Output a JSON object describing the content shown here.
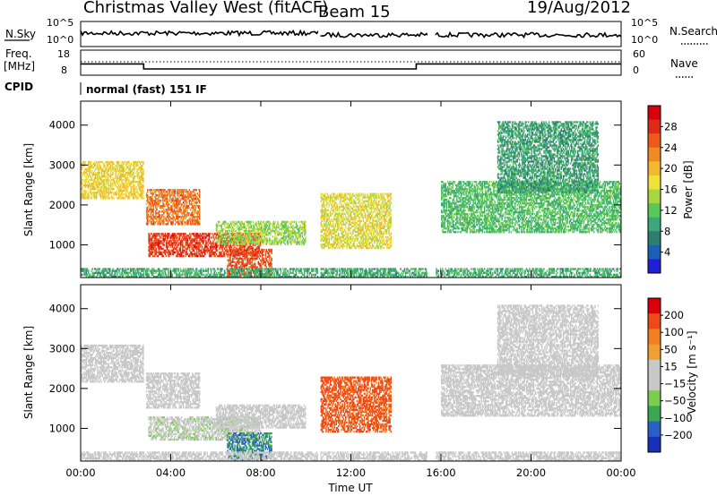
{
  "header": {
    "title": "Christmas Valley West (fitACF)",
    "beam": "Beam 15",
    "date": "19/Aug/2012"
  },
  "top_panels": {
    "nsky_label": "N.Sky",
    "nsearch_label": "N.Search",
    "noise_ticks": [
      "10^5",
      "10^0"
    ],
    "freq_label_line1": "Freq.",
    "freq_label_line2": "[MHz]",
    "freq_ticks": [
      "18",
      "8"
    ],
    "nave_label": "Nave",
    "nave_ticks": [
      "60",
      "0"
    ],
    "cpid_label": "CPID",
    "cpid_value": "normal (fast) 151 IF"
  },
  "chart_data": {
    "type": "heatmap",
    "xlabel": "Time UT",
    "x_ticks": [
      "00:00",
      "04:00",
      "08:00",
      "12:00",
      "16:00",
      "20:00",
      "00:00"
    ],
    "x_range_hours": [
      0,
      24
    ],
    "data_gaps_hours": [
      [
        10.55,
        10.65
      ],
      [
        15.4,
        15.75
      ]
    ],
    "frequency_mhz": [
      {
        "start": 0,
        "end": 2.8,
        "value": 12.5
      },
      {
        "start": 2.8,
        "end": 14.9,
        "value": 10.5
      },
      {
        "start": 14.9,
        "end": 24,
        "value": 12.5
      }
    ],
    "panels": [
      {
        "id": "power",
        "ylabel": "Slant Range [km]",
        "y_ticks": [
          "1000",
          "2000",
          "3000",
          "4000"
        ],
        "y_range_km": [
          180,
          4600
        ],
        "colorbar_label": "Power [dB]",
        "colorbar_ticks": [
          "4",
          "8",
          "12",
          "16",
          "20",
          "24",
          "28"
        ],
        "colorbar_range": [
          0,
          32
        ],
        "colors": [
          "#1f1fd6",
          "#1c5fb8",
          "#2e7d6e",
          "#3aa87a",
          "#58c85a",
          "#a8d640",
          "#f0e03a",
          "#f4b830",
          "#f08a24",
          "#ee5a1c",
          "#e02a18",
          "#d8000c"
        ]
      },
      {
        "id": "velocity",
        "ylabel": "Slant Range [km]",
        "y_ticks": [
          "1000",
          "2000",
          "3000",
          "4000"
        ],
        "y_range_km": [
          180,
          4600
        ],
        "colorbar_label": "Velocity [m s⁻¹]",
        "colorbar_ticks": [
          "200",
          "100",
          "50",
          "15",
          "−15",
          "−50",
          "−100",
          "−200"
        ],
        "colorbar_range": [
          -250,
          250
        ],
        "colors": [
          "#1a2fb8",
          "#2a5fc8",
          "#3aa850",
          "#7acd50",
          "#c8c8c8",
          "#c8c8c8",
          "#f0a030",
          "#f08020",
          "#ee4a18",
          "#d8000c"
        ]
      }
    ],
    "regions": [
      {
        "t0": 0.0,
        "t1": 2.8,
        "r0": 2150,
        "r1": 3100,
        "power_db": 18,
        "velocity": 8
      },
      {
        "t0": 2.9,
        "t1": 5.3,
        "r0": 1500,
        "r1": 2400,
        "power_db": 24,
        "velocity": -20
      },
      {
        "t0": 3.0,
        "t1": 8.0,
        "r0": 700,
        "r1": 1300,
        "power_db": 27,
        "velocity": -40
      },
      {
        "t0": 6.0,
        "t1": 10.0,
        "r0": 1000,
        "r1": 1600,
        "power_db": 14,
        "velocity": 10
      },
      {
        "t0": 6.5,
        "t1": 8.5,
        "r0": 200,
        "r1": 900,
        "power_db": 26,
        "velocity": -150
      },
      {
        "t0": 10.6,
        "t1": 13.8,
        "r0": 900,
        "r1": 2300,
        "power_db": 17,
        "velocity": 160
      },
      {
        "t0": 16.0,
        "t1": 24.0,
        "r0": 1300,
        "r1": 2600,
        "power_db": 11,
        "velocity": 5
      },
      {
        "t0": 18.5,
        "t1": 23.0,
        "r0": 2300,
        "r1": 4100,
        "power_db": 9,
        "velocity": 5
      },
      {
        "t0": 0.0,
        "t1": 24.0,
        "r0": 180,
        "r1": 420,
        "power_db": 10,
        "velocity": -30
      }
    ]
  }
}
